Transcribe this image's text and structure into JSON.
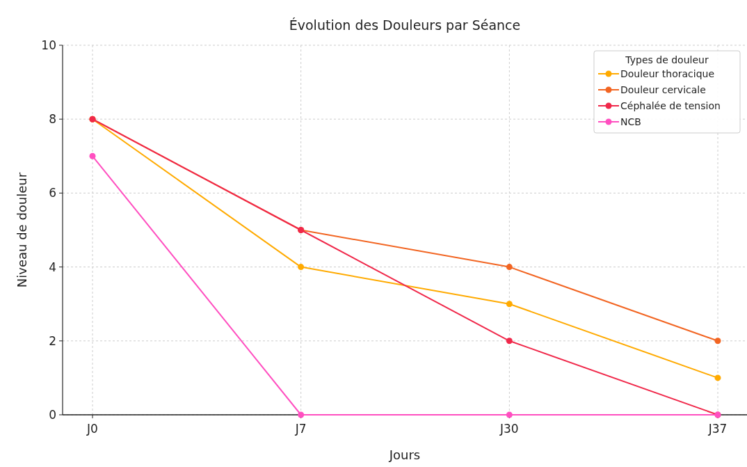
{
  "chart_data": {
    "type": "line",
    "title": "Évolution des Douleurs par Séance",
    "xlabel": "Jours",
    "ylabel": "Niveau de douleur",
    "legend_title": "Types de douleur",
    "categories": [
      "J0",
      "J7",
      "J30",
      "J37"
    ],
    "series": [
      {
        "name": "Douleur thoracique",
        "color": "#ffaa00",
        "values": [
          8,
          4,
          3,
          1
        ]
      },
      {
        "name": "Douleur cervicale",
        "color": "#f26522",
        "values": [
          8,
          5,
          4,
          2
        ]
      },
      {
        "name": "Céphalée de tension",
        "color": "#f0284a",
        "values": [
          8,
          5,
          2,
          0
        ]
      },
      {
        "name": "NCB",
        "color": "#ff4fc0",
        "values": [
          7,
          0,
          0,
          0
        ]
      }
    ],
    "ylim": [
      0,
      10
    ],
    "yticks": [
      0,
      2,
      4,
      6,
      8,
      10
    ],
    "grid": true,
    "legend": "top right",
    "marker": "circle",
    "line_style": "solid"
  }
}
